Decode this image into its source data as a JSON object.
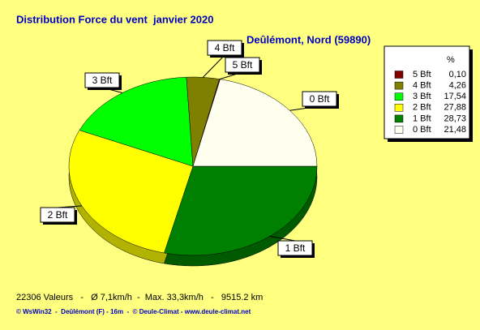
{
  "chart_data": {
    "type": "pie",
    "title": "Distribution Force du vent  janvier 2020",
    "subtitle": "Deûlémont, Nord (59890)",
    "legend_header": "%",
    "categories": [
      "5 Bft",
      "4 Bft",
      "3 Bft",
      "2 Bft",
      "1 Bft",
      "0 Bft"
    ],
    "values": [
      0.1,
      4.26,
      17.54,
      27.88,
      28.73,
      21.48
    ],
    "value_labels": [
      "0,10",
      "4,26",
      "17,54",
      "27,88",
      "28,73",
      "21,48"
    ],
    "colors": [
      "#800000",
      "#808000",
      "#00ff00",
      "#ffff00",
      "#008000",
      "#fffff0"
    ],
    "legend_position": "upper right",
    "footer": "22306 Valeurs   -   Ø 7,1km/h  -  Max. 33,3km/h   -   9515.2 km",
    "credits": "© WsWin32  -  Deûlémont (F) - 16m  -  © Deule-Climat - www.deule-climat.net"
  }
}
